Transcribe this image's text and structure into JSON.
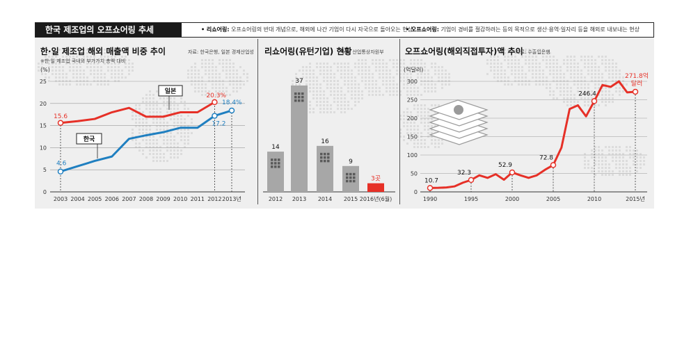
{
  "header": {
    "title": "한국 제조업의 오프쇼어링 추세",
    "definitions": [
      {
        "term": "• 리쇼어링:",
        "text": "오프쇼어링의 반대 개념으로, 해외에 나간 기업이 다시 자국으로 돌아오는 현상"
      },
      {
        "term": "• 오프쇼어링:",
        "text": "기업이 경비를 절감하려는 등의 목적으로 생산·용역·일자리 등을 해외로 내보내는 현상"
      }
    ]
  },
  "colors": {
    "korea": "#1f7fc0",
    "japan": "#e63027",
    "bar": "#a7a7a7",
    "bar_highlight": "#e63027",
    "offshore": "#e63027"
  },
  "chart_data": [
    {
      "type": "line",
      "title": "한·일 제조업 해외 매출액 비중 추이",
      "source": "자료: 한국은행, 일본 경제산업성",
      "note": "※한·일 제조업 국내외 부가가치 총액 대비",
      "ylabel": "(%)",
      "ylim": [
        0,
        25
      ],
      "yticks": [
        "0",
        "5",
        "10",
        "15",
        "20",
        "25"
      ],
      "x": [
        2003,
        2004,
        2005,
        2006,
        2007,
        2008,
        2009,
        2010,
        2011,
        2012,
        2013
      ],
      "xtick_labels": [
        "2003",
        "2004",
        "2005",
        "2006",
        "2007",
        "2008",
        "2009",
        "2010",
        "2011",
        "2012",
        "2013년"
      ],
      "grid": true,
      "series": [
        {
          "name": "일본",
          "values": [
            15.6,
            16.0,
            16.5,
            18.0,
            19.0,
            17.0,
            17.0,
            18.0,
            18.0,
            20.3,
            null
          ],
          "labels": {
            "first": "15.6",
            "last": "20.3%"
          }
        },
        {
          "name": "한국",
          "values": [
            4.6,
            5.8,
            7.0,
            8.0,
            12.0,
            12.8,
            13.5,
            14.5,
            14.5,
            17.2,
            18.4
          ],
          "labels": {
            "first": "4.6",
            "second_last": "17.2",
            "last": "18.4%"
          }
        }
      ]
    },
    {
      "type": "bar",
      "title": "리쇼어링(유턴기업) 현황",
      "source": "자료: 산업통상자원부",
      "categories": [
        "2012",
        "2013",
        "2014",
        "2015",
        "2016년(6월)"
      ],
      "values": [
        14,
        37,
        16,
        9,
        3
      ],
      "value_labels": [
        "14",
        "37",
        "16",
        "9",
        "3곳"
      ]
    },
    {
      "type": "line",
      "title": "오프쇼어링(해외직접투자)액 추이",
      "source": "자료: 수출입은행",
      "ylabel": "(억달러)",
      "ylim": [
        0,
        300
      ],
      "yticks": [
        "0",
        "50",
        "100",
        "150",
        "200",
        "250",
        "300"
      ],
      "xtick_labels": [
        "1990",
        "1995",
        "2000",
        "2005",
        "2010",
        "2015년"
      ],
      "xtick_values": [
        1990,
        1995,
        2000,
        2005,
        2010,
        2015
      ],
      "grid": true,
      "x": [
        1990,
        1991,
        1992,
        1993,
        1994,
        1995,
        1996,
        1997,
        1998,
        1999,
        2000,
        2001,
        2002,
        2003,
        2004,
        2005,
        2006,
        2007,
        2008,
        2009,
        2010,
        2011,
        2012,
        2013,
        2014,
        2015
      ],
      "values": [
        10.7,
        11,
        12,
        15,
        25,
        32.3,
        45,
        38,
        48,
        33,
        52.9,
        45,
        38,
        45,
        60,
        72.8,
        120,
        225,
        235,
        205,
        246.4,
        290,
        285,
        300,
        270,
        271.8
      ],
      "annotations": [
        {
          "x": 1990,
          "label": "10.7"
        },
        {
          "x": 1995,
          "label": "32.3"
        },
        {
          "x": 2000,
          "label": "52.9"
        },
        {
          "x": 2005,
          "label": "72.8"
        },
        {
          "x": 2010,
          "label": "246.4"
        },
        {
          "x": 2015,
          "label": "271.8억",
          "label2": "달러"
        }
      ]
    }
  ]
}
